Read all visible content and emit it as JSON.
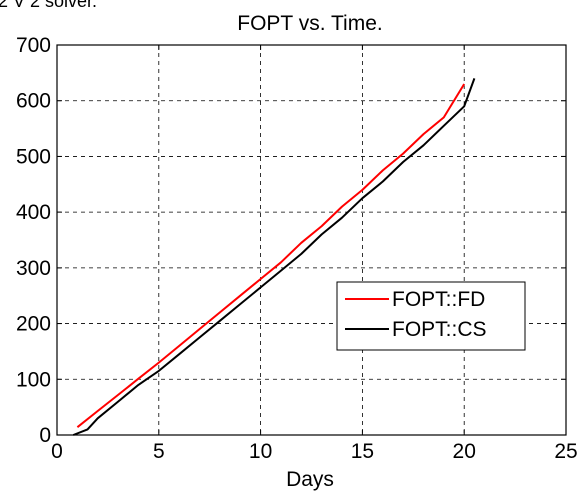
{
  "cropped_top_text": "2 V 2 solver.",
  "chart_data": {
    "type": "line",
    "title": "FOPT vs. Time.",
    "xlabel": "Days",
    "ylabel": "",
    "xlim": [
      0,
      25
    ],
    "ylim": [
      0,
      700
    ],
    "xticks": [
      "0",
      "5",
      "10",
      "15",
      "20",
      "25"
    ],
    "yticks": [
      "0",
      "100",
      "200",
      "300",
      "400",
      "500",
      "600",
      "700"
    ],
    "grid": true,
    "legend_position": "center-right",
    "series": [
      {
        "name": "FOPT::FD",
        "color": "#ff0000",
        "x": [
          1,
          2,
          3,
          4,
          5,
          6,
          7,
          8,
          9,
          10,
          11,
          12,
          13,
          14,
          15,
          16,
          17,
          18,
          19,
          20
        ],
        "y": [
          14,
          43,
          72,
          101,
          130,
          160,
          190,
          220,
          250,
          280,
          310,
          345,
          375,
          410,
          440,
          475,
          505,
          540,
          570,
          630
        ]
      },
      {
        "name": "FOPT::CS",
        "color": "#000000",
        "x": [
          0.8,
          1.5,
          2,
          3,
          4,
          5,
          6,
          7,
          8,
          9,
          10,
          11,
          12,
          13,
          14,
          15,
          16,
          17,
          18,
          19,
          20,
          20.5
        ],
        "y": [
          0,
          10,
          30,
          60,
          90,
          115,
          145,
          175,
          205,
          235,
          265,
          295,
          325,
          360,
          390,
          425,
          455,
          490,
          520,
          555,
          590,
          640
        ]
      }
    ]
  }
}
